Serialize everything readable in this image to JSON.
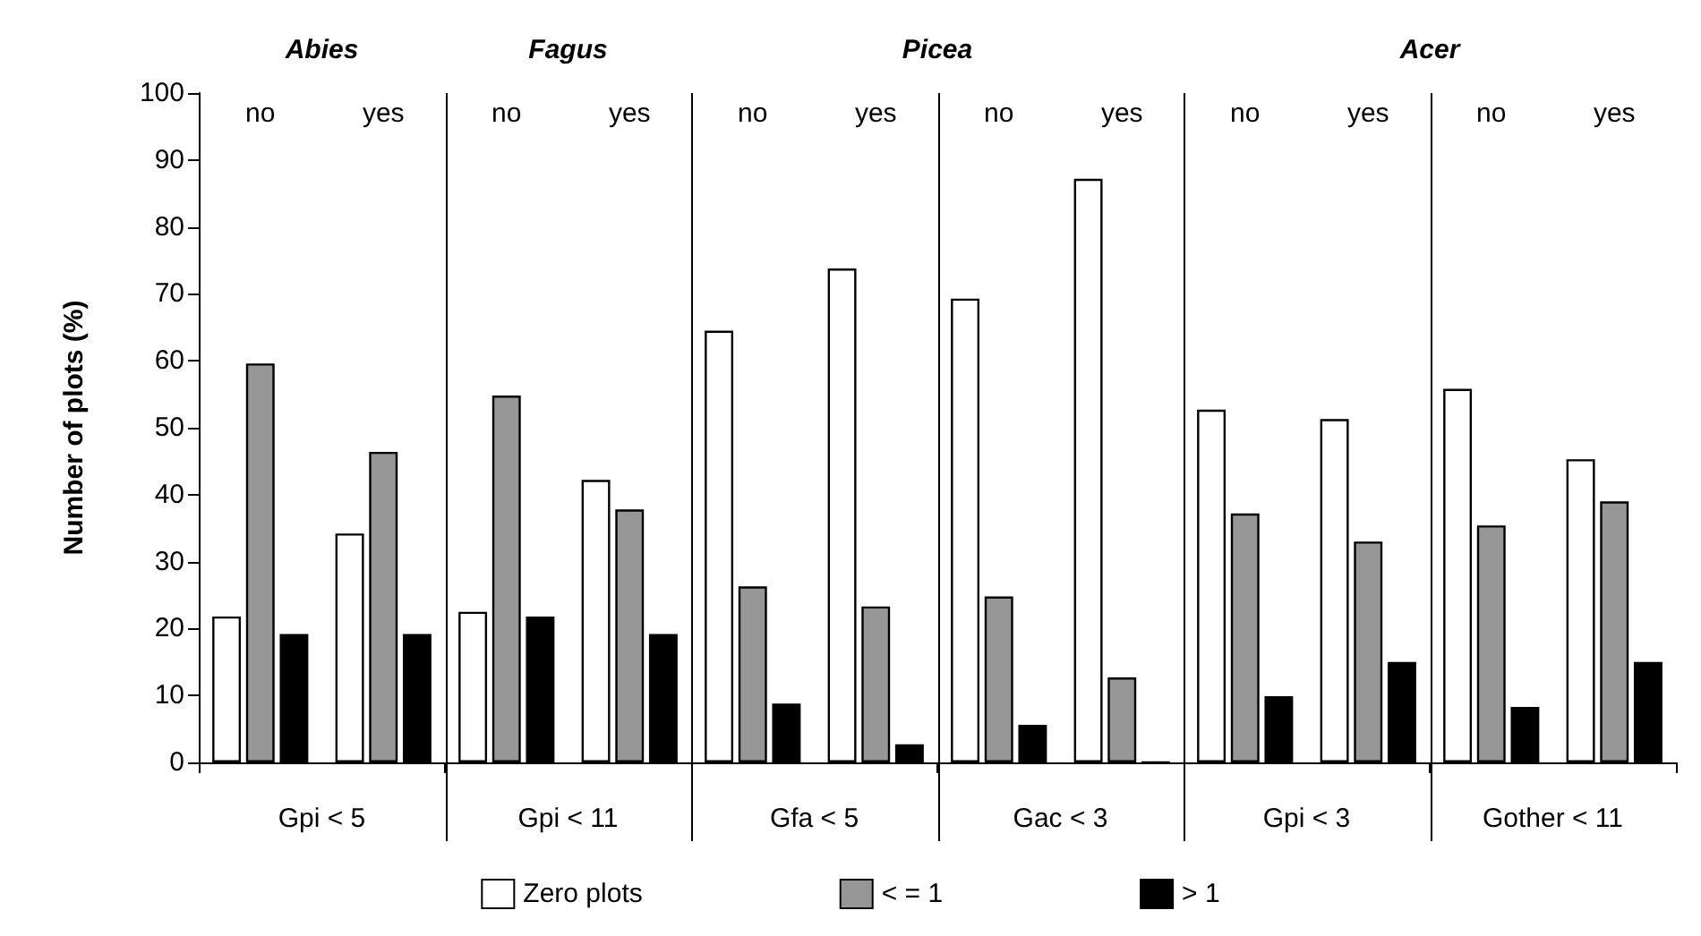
{
  "chart_data": {
    "type": "bar",
    "ylabel": "Number of plots (%)",
    "categories": [
      "no",
      "yes",
      "no",
      "yes",
      "no",
      "yes",
      "no",
      "yes",
      "no",
      "yes",
      "no",
      "yes"
    ],
    "series": [
      {
        "name": "Zero plots",
        "color": "#ffffff",
        "values": [
          21.8,
          34.2,
          22.5,
          42.2,
          64.5,
          73.8,
          69.3,
          87.2,
          52.7,
          51.3,
          55.8,
          45.3
        ]
      },
      {
        "name": "< = 1",
        "color": "#969696",
        "values": [
          59.6,
          46.4,
          54.8,
          37.8,
          26.3,
          23.3,
          24.8,
          12.7,
          37.2,
          33.0,
          35.4,
          39.0
        ]
      },
      {
        "name": "> 1",
        "color": "#000000",
        "values": [
          19.2,
          19.2,
          21.8,
          19.2,
          8.8,
          2.7,
          5.6,
          0,
          9.9,
          15.0,
          8.3,
          15.0
        ]
      }
    ],
    "annotations": [
      "Gpi < 5",
      "Gpi < 11",
      "Gfa < 5",
      "Gac < 3",
      "Gpi < 3",
      "Gother < 11",
      "Abies",
      "Fagus",
      "Picea",
      "Acer"
    ],
    "ylim": [
      0,
      100
    ],
    "yticks": [
      0,
      10,
      20,
      30,
      40,
      50,
      60,
      70,
      80,
      90,
      100
    ],
    "grid": false,
    "legend": "bottom"
  }
}
